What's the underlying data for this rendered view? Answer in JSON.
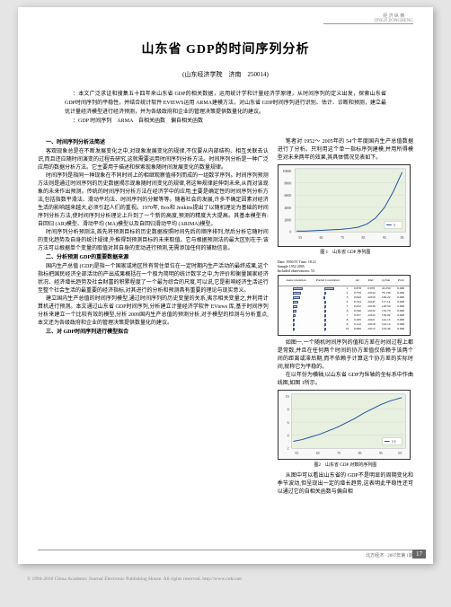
{
  "header": {
    "ornament_top": "经 济 纵 横",
    "ornament_en": "JINGJI ZONGHENG"
  },
  "title": "山东省 GDP的时间序列分析",
  "affiliation": "(山东经济学院　济南　250014)",
  "abstract": {
    "line1": "：本文广泛求证和搜集五十四年来山东省 GDP的相关数据，运用统计学和计量经济学原理，从时间序列的定义出发，探索山东省 GDP时间序列的平稳性，并结合统计软件 EVIEWS运用 ARMA建模方法，对山东省 GDP时间序列进行识别、估计、诊断和预测，建立最优计量经济模型进行经济预测，并为各级政府和企业的管理决策提供数量化的建议。",
    "line2": "：GDP 时间序列　ARMA　自相关函数　偏自相关函数"
  },
  "sections": {
    "s1_title": "一、时间序列分析法简述",
    "s1_body": "客观现象总是在不断发展变化之中,对现象发展变化的规律,不仅要从内部结构、相互关联去认识,而且还应随时间演变的过程去研究,这就需要运用时间序列分析方法。时间序列分析是一种广泛应用的数据分析方法。它主要用于描述和探索现象随时间发展变化的数量规律。",
    "s1_body2": "时间序列是指同一种现象在不同时间上的相继观察值排列而成的一组数字序列。时间序列预测方法则是通过时间序列的历史数据揭示现象随时间变化的规律,将这种规律延伸到未来,从而对该现象的未来作出预测。传统的时间序列分析方法在经济学中的应用,主要是确定性的时间序列分析方法,包括指数平滑法、滑动平均法、时间序列的分解等等。随着社会的发展,许多不确定因素对经济生活的影响越来越大,必须引起人们的重视。1970年, Box和 Jenkins提出了以随机理论为基础的时间序列分析方法,使时间序列分析理论上升到了一个新的高度,预测的精度大大提高。其基本模型有: 自回归 (AR)模型、滑动平均 (MA)模型以及自回归滑动平均 (ARIMA)模型。",
    "s1_body3": "时间序列分析预测法,首先将预测目标的历史数据按照时间先后的顺序排列,然后分析它随时间的变化趋势及自身的统计规律,外推得到预测目标的未来取值。它与根据预测法的最大区别在于:该方法可以根据单个变量的取值对其自身的变动进行预测,无需添加任何的辅助信息。",
    "s2_title": "二、分析预测 GDP的重要数据来源",
    "s2_body": "国内生产总值 (GDP)是指一个国家或地区所有常住单位在一定时期内生产活动的最终成果,这个指标把国民经济全部活动的产出成果概括在一个极为简明的统计数字之中,为评价和衡量国家经济状况、经济增长趋势及社会财富的积累程度了一个最为综合的尺度,可以说,它是影响经济生活运行至整个社会生活的最重要的经济指标,对其进行的分析和预测具有重要的理论与现实意义。",
    "s2_body2": "建立国内生产总值的时间序列模型,通过时间序列的历史变量的关系,夷示相关变量之,并利用计算机进行预测。本文通过山东省 GDP时间序列,分析建立计量经济学软件 EViews 库,基于时间序列分析来建立一个比较有效的模型,分析 2009国内生产总值的预测分析,对于模型的检测与分析重点,本文还为各级政府和企业的管理决策提供数量化的建议。",
    "s3_title": "三、对 GDP时间序列进行模型拟合"
  },
  "right_col": {
    "p1": "笔者对 1952～ 2005年的 54个年度国内生产总值数据进行了分析。只利用这个单一指标序列建模,并用所得模型对未来两年的效果,其具体情况见表如下。",
    "p2": "如图一,一个随机时间序列的值和方差在时间过程上都是常数,并且在任何两个时间的协方差值仅依赖于该两个间的距离或滞后期,而不依赖于计算这个协方差的实际时间,就称它为平稳的。",
    "p3": "在以年份为横轴,以山东省 GDP为纵轴的坐标系中作曲线图,如图 1所示。",
    "p4": "从图中可以看出山东省的 GDP不是明显的周期变化和季节波动,但呈现出一定的增长趋势,这表明此平稳性还可以通过它的自相关函数与偏自相"
  },
  "chart1": {
    "type": "line",
    "caption": "图 1　山东省 GDP 序列图",
    "x_range": [
      1952,
      2005
    ],
    "y_range": [
      0,
      10000
    ],
    "y_ticks": [
      0,
      2000,
      4000,
      6000,
      8000,
      10000
    ],
    "line_color": "#2050a0",
    "background": "#e8f0e0",
    "sample_label": "Date: 1950/55 Time: 18:21",
    "sample_label2": "Sample 1952 2005",
    "sample_label3": "Included observations: 53",
    "data_approx": [
      50,
      60,
      70,
      80,
      90,
      100,
      110,
      120,
      130,
      150,
      170,
      190,
      210,
      240,
      270,
      300,
      340,
      380,
      430,
      490,
      560,
      640,
      730,
      840,
      960,
      1100,
      1260,
      1450,
      1660,
      1910,
      2190,
      2520,
      2900,
      3330,
      3830,
      4410,
      5070,
      5830,
      6700,
      7710,
      8870,
      10200
    ]
  },
  "correlogram": {
    "headers": [
      "Autocorrelation",
      "Partial Correlation",
      "",
      "AC",
      "PAC",
      "Q-Stat",
      "Prob"
    ],
    "rows": [
      {
        "ac_bar": 0.85,
        "pac_bar": 0.85,
        "lag": 1,
        "ac": "0.878",
        "pac": "0.878",
        "q": "43.250",
        "p": "0.000"
      },
      {
        "ac_bar": 0.72,
        "pac_bar": -0.05,
        "lag": 2,
        "ac": "0.759",
        "pac": "-0.044",
        "q": "76.136",
        "p": "0.000"
      },
      {
        "ac_bar": 0.6,
        "pac_bar": -0.06,
        "lag": 3,
        "ac": "0.643",
        "pac": "-0.059",
        "q": "100.22",
        "p": "0.000"
      },
      {
        "ac_bar": 0.49,
        "pac_bar": -0.04,
        "lag": 4,
        "ac": "0.534",
        "pac": "-0.047",
        "q": "117.14",
        "p": "0.000"
      },
      {
        "ac_bar": 0.39,
        "pac_bar": -0.03,
        "lag": 5,
        "ac": "0.432",
        "pac": "-0.036",
        "q": "128.50",
        "p": "0.000"
      },
      {
        "ac_bar": 0.3,
        "pac_bar": -0.03,
        "lag": 6,
        "ac": "0.340",
        "pac": "-0.032",
        "q": "135.70",
        "p": "0.000"
      },
      {
        "ac_bar": 0.22,
        "pac_bar": -0.02,
        "lag": 7,
        "ac": "0.257",
        "pac": "-0.022",
        "q": "139.92",
        "p": "0.000"
      },
      {
        "ac_bar": 0.16,
        "pac_bar": -0.02,
        "lag": 8,
        "ac": "0.185",
        "pac": "-0.021",
        "q": "142.15",
        "p": "0.000"
      },
      {
        "ac_bar": 0.1,
        "pac_bar": -0.02,
        "lag": 9,
        "ac": "0.122",
        "pac": "-0.018",
        "q": "143.14",
        "p": "0.000"
      },
      {
        "ac_bar": 0.06,
        "pac_bar": -0.01,
        "lag": 10,
        "ac": "0.069",
        "pac": "-0.012",
        "q": "143.46",
        "p": "0.000"
      }
    ]
  },
  "chart2": {
    "type": "line",
    "caption": "图2　山东省 GDP 对数的序列图",
    "x_range": [
      1952,
      2005
    ],
    "y_range": [
      2,
      10
    ],
    "y_ticks": [
      2,
      4,
      6,
      8,
      10
    ],
    "line_color": "#2050a0",
    "background": "#e8f0e0"
  },
  "footer": {
    "left": "",
    "right": "北方经济 · 2007年第 1期"
  },
  "page_number": "17",
  "copyright": "© 1994-2010 China Academic Journal Electronic Publishing House. All rights reserved.    http://www.cnki.net"
}
